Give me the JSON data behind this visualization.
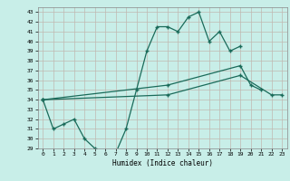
{
  "xlabel": "Humidex (Indice chaleur)",
  "bg_color": "#c8eee8",
  "grid_color": "#c0b8b0",
  "line_color": "#1a6b5a",
  "line1_x": [
    0,
    1,
    2,
    3,
    4,
    5,
    6,
    7,
    8,
    9,
    10,
    11,
    12,
    13,
    14,
    15,
    16,
    17,
    18,
    19
  ],
  "line1_y": [
    34,
    31,
    31.5,
    32,
    30,
    29,
    28.5,
    28.5,
    31,
    35,
    39,
    41.5,
    41.5,
    41,
    42.5,
    43,
    40,
    41,
    39,
    39.5
  ],
  "line2_x": [
    0,
    12,
    19,
    20,
    21
  ],
  "line2_y": [
    34,
    35.5,
    37.5,
    35.5,
    35
  ],
  "line3_x": [
    0,
    12,
    19,
    22,
    23
  ],
  "line3_y": [
    34,
    34.5,
    36.5,
    34.5,
    34.5
  ],
  "ylim": [
    29,
    43.5
  ],
  "xlim": [
    -0.5,
    23.5
  ],
  "yticks": [
    29,
    30,
    31,
    32,
    33,
    34,
    35,
    36,
    37,
    38,
    39,
    40,
    41,
    42,
    43
  ],
  "xticks": [
    0,
    1,
    2,
    3,
    4,
    5,
    6,
    7,
    8,
    9,
    10,
    11,
    12,
    13,
    14,
    15,
    16,
    17,
    18,
    19,
    20,
    21,
    22,
    23
  ]
}
